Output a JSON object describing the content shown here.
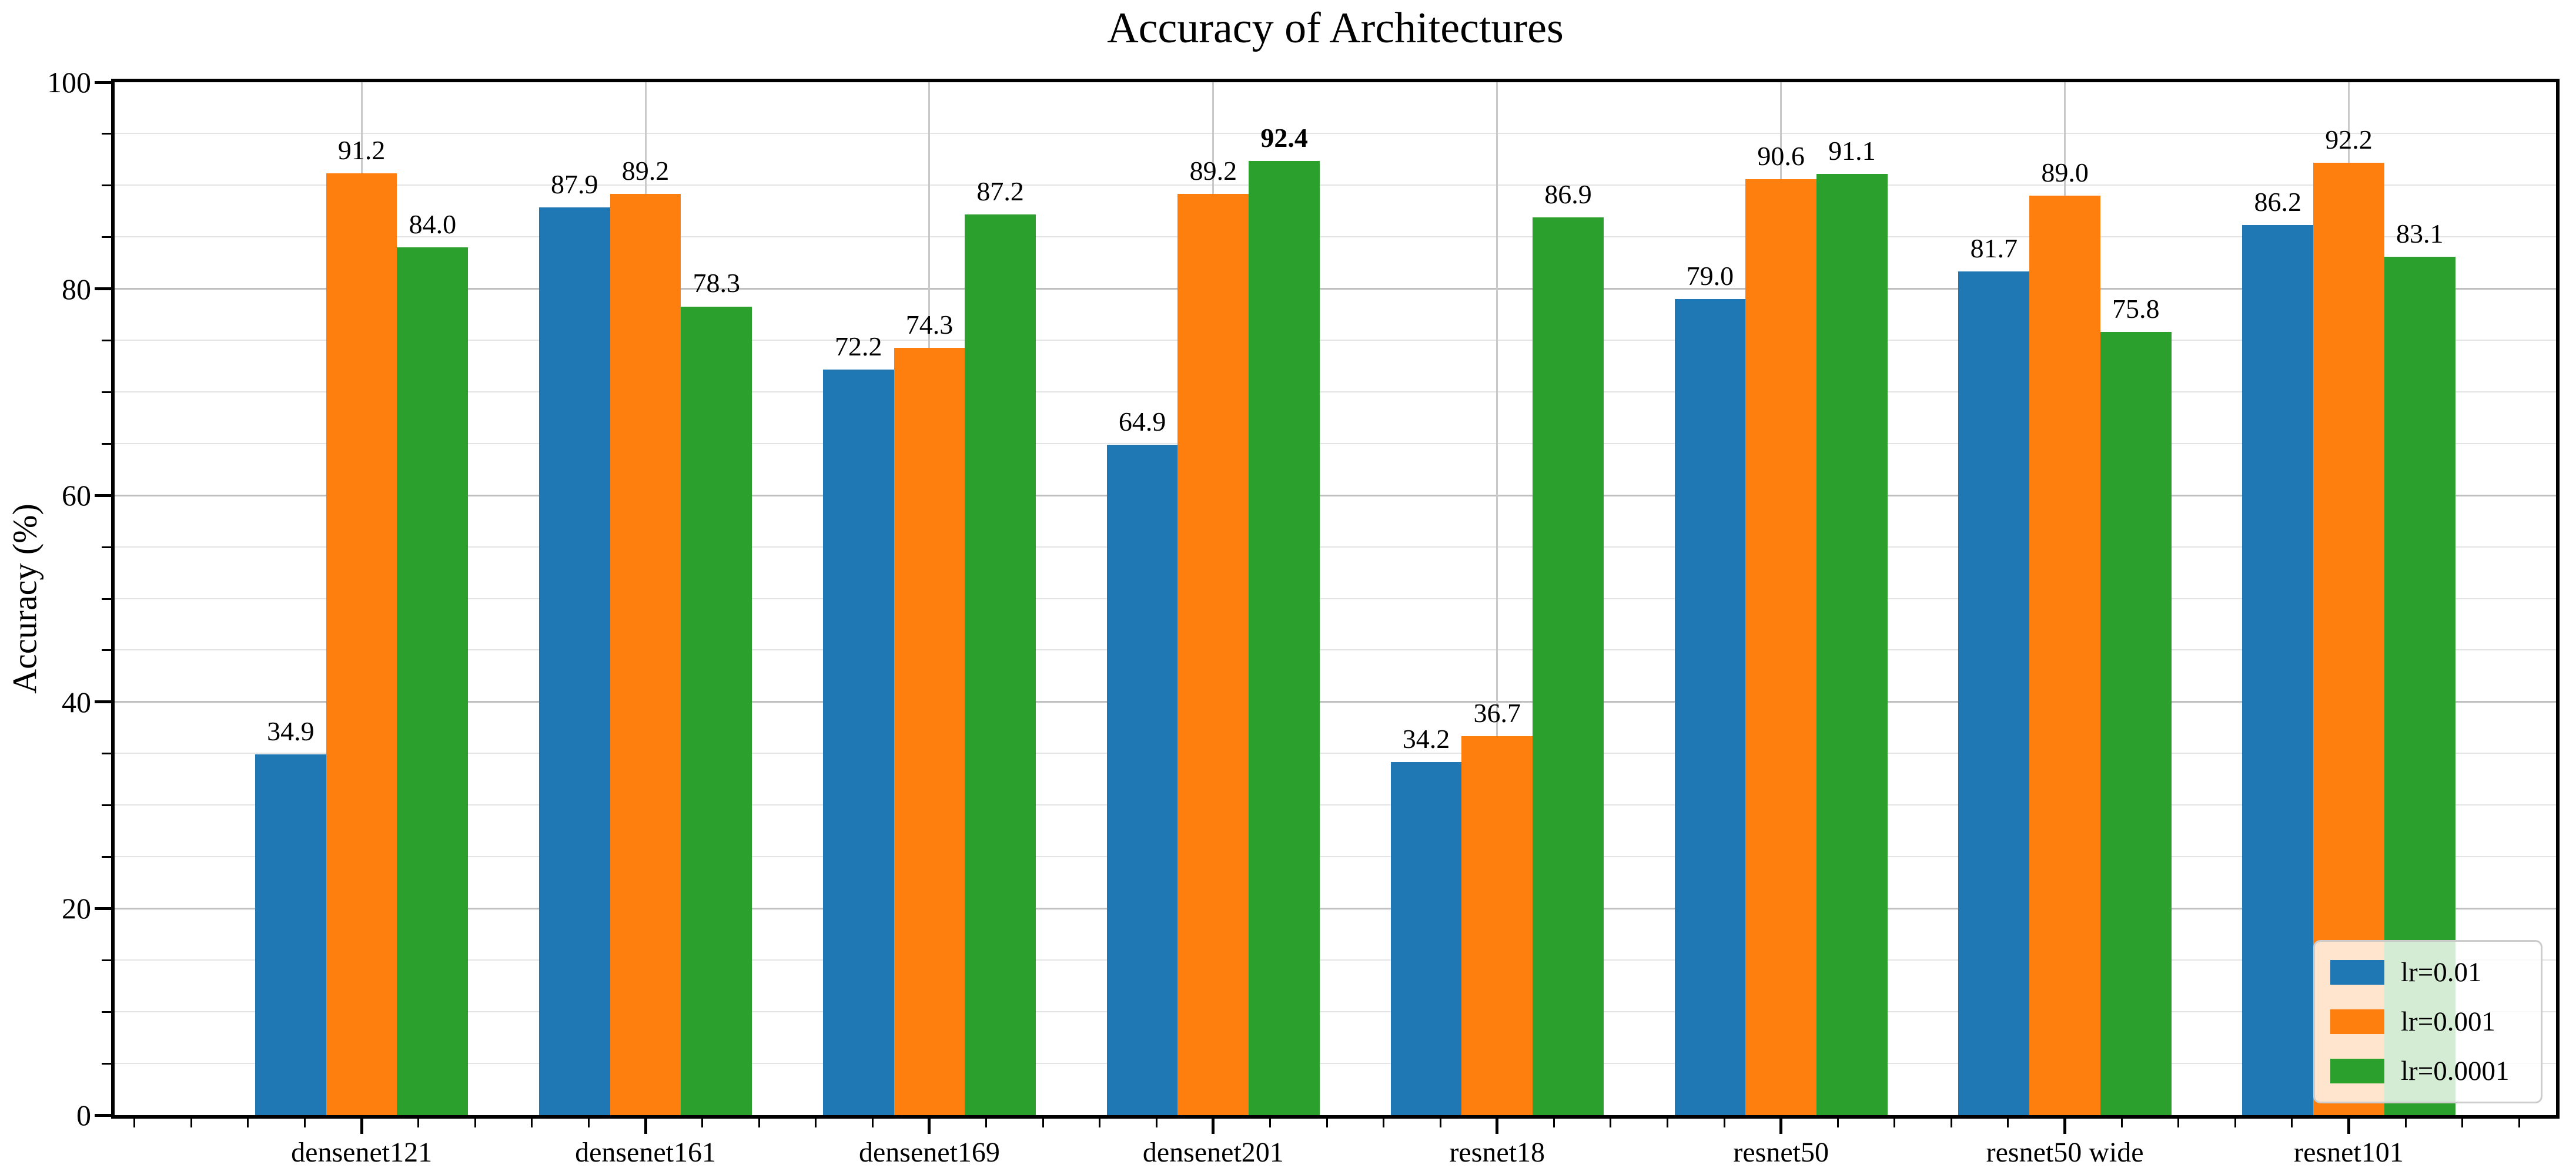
{
  "figure": {
    "background": "#ffffff"
  },
  "chart_data": {
    "type": "bar",
    "title": "Accuracy of Architectures",
    "xlabel": "",
    "ylabel": "Accuracy (%)",
    "ylim": [
      0,
      100
    ],
    "ytick_major_step": 20,
    "ytick_minor_step": 5,
    "grid": true,
    "gridlines": "horizontal every 5 (minor) and 20 (major), vertical at category centers",
    "legend_position": "lower right",
    "legend_entries": [
      "lr=0.01",
      "lr=0.001",
      "lr=0.0001"
    ],
    "categories": [
      "densenet121",
      "densenet161",
      "densenet169",
      "densenet201",
      "resnet18",
      "resnet50",
      "resnet50 wide",
      "resnet101"
    ],
    "series": [
      {
        "name": "lr=0.01",
        "color": "#1f77b4",
        "values": [
          34.9,
          87.9,
          72.2,
          64.9,
          34.2,
          79.0,
          81.7,
          86.2
        ]
      },
      {
        "name": "lr=0.001",
        "color": "#ff7f0e",
        "values": [
          91.2,
          89.2,
          74.3,
          89.2,
          36.7,
          90.6,
          89.0,
          92.2
        ]
      },
      {
        "name": "lr=0.0001",
        "color": "#2ca02c",
        "values": [
          84.0,
          78.3,
          87.2,
          92.4,
          86.9,
          91.1,
          75.8,
          83.1
        ]
      }
    ],
    "emphasized_value": {
      "series": "lr=0.0001",
      "category": "densenet201",
      "label": "92.4"
    }
  }
}
